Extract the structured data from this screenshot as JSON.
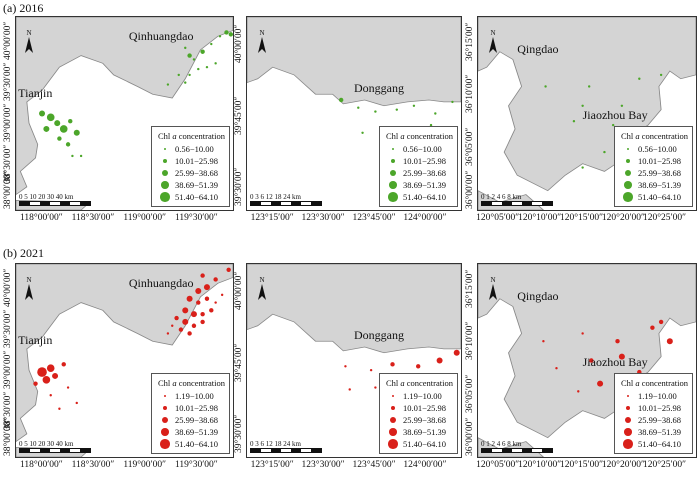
{
  "rows": [
    {
      "label": "(a) 2016",
      "color": "#4ca62a"
    },
    {
      "label": "(b) 2021",
      "color": "#d9201a"
    }
  ],
  "panels": {
    "left": {
      "cities": [
        "Qinhuangdao",
        "Tianjin"
      ],
      "scale": "0 5 10 20 30 40 km",
      "x_ticks": [
        "118°00′00″",
        "118°30′00″",
        "119°00′00″",
        "119°30′00″"
      ],
      "y_ticks": [
        "40°00′00″",
        "39°30′00″",
        "39°00′00″",
        "38°30′00″",
        "38°00′00″"
      ]
    },
    "middle": {
      "cities": [
        "Donggang"
      ],
      "scale": "0 3 6 12 18 24 km",
      "x_ticks": [
        "123°15′00″",
        "123°30′00″",
        "123°45′00″",
        "124°00′00″"
      ],
      "y_ticks": [
        "40°00′00″",
        "39°45′00″",
        "39°30′00″"
      ]
    },
    "right": {
      "cities": [
        "Qingdao",
        "Jiaozhou Bay"
      ],
      "scale": "0 1 2 4 6 8 km",
      "x_ticks": [
        "120°05′00″",
        "120°10′00″",
        "120°15′00″",
        "120°20′00″",
        "120°25′00″"
      ],
      "y_ticks": [
        "36°15′00″",
        "36°10′00″",
        "36°05′00″",
        "36°00′00″"
      ]
    }
  },
  "north_label": "N",
  "legends": [
    {
      "title": "Chl a concentration",
      "classes": [
        "0.56−10.00",
        "10.01−25.98",
        "25.99−38.68",
        "38.69−51.39",
        "51.40−64.10"
      ]
    },
    {
      "title": "Chl a concentration",
      "classes": [
        "1.19−10.00",
        "10.01−25.98",
        "25.99−38.68",
        "38.69−51.39",
        "51.40−64.10"
      ]
    }
  ]
}
